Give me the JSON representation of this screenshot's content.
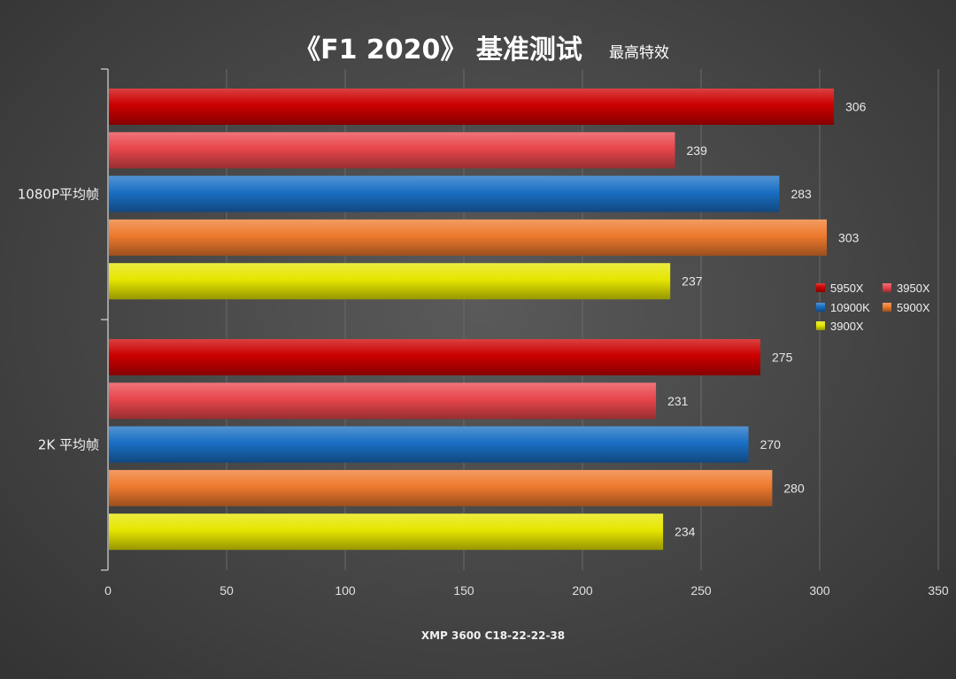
{
  "header": {
    "title": "《F1 2020》 基准测试",
    "subtitle": "最高特效"
  },
  "footer": {
    "note": "XMP 3600 C18-22-22-38"
  },
  "colors": {
    "5950X": "#cc0000",
    "3950X": "#e8464c",
    "10900K": "#1a6fc4",
    "5900X": "#ee7a2e",
    "3900X": "#e6e600"
  },
  "chart_data": {
    "type": "bar",
    "orientation": "horizontal",
    "title": "《F1 2020》 基准测试",
    "subtitle": "最高特效",
    "categories": [
      "1080P平均帧",
      "2K 平均帧"
    ],
    "series": [
      {
        "name": "5950X",
        "values": [
          306,
          275
        ]
      },
      {
        "name": "3950X",
        "values": [
          239,
          231
        ]
      },
      {
        "name": "10900K",
        "values": [
          283,
          270
        ]
      },
      {
        "name": "5900X",
        "values": [
          303,
          280
        ]
      },
      {
        "name": "3900X",
        "values": [
          237,
          234
        ]
      }
    ],
    "xlim": [
      0,
      350
    ],
    "xticks": [
      0,
      50,
      100,
      150,
      200,
      250,
      300,
      350
    ],
    "grid": true,
    "legend_position": "right",
    "xlabel": "XMP 3600 C18-22-22-38"
  }
}
